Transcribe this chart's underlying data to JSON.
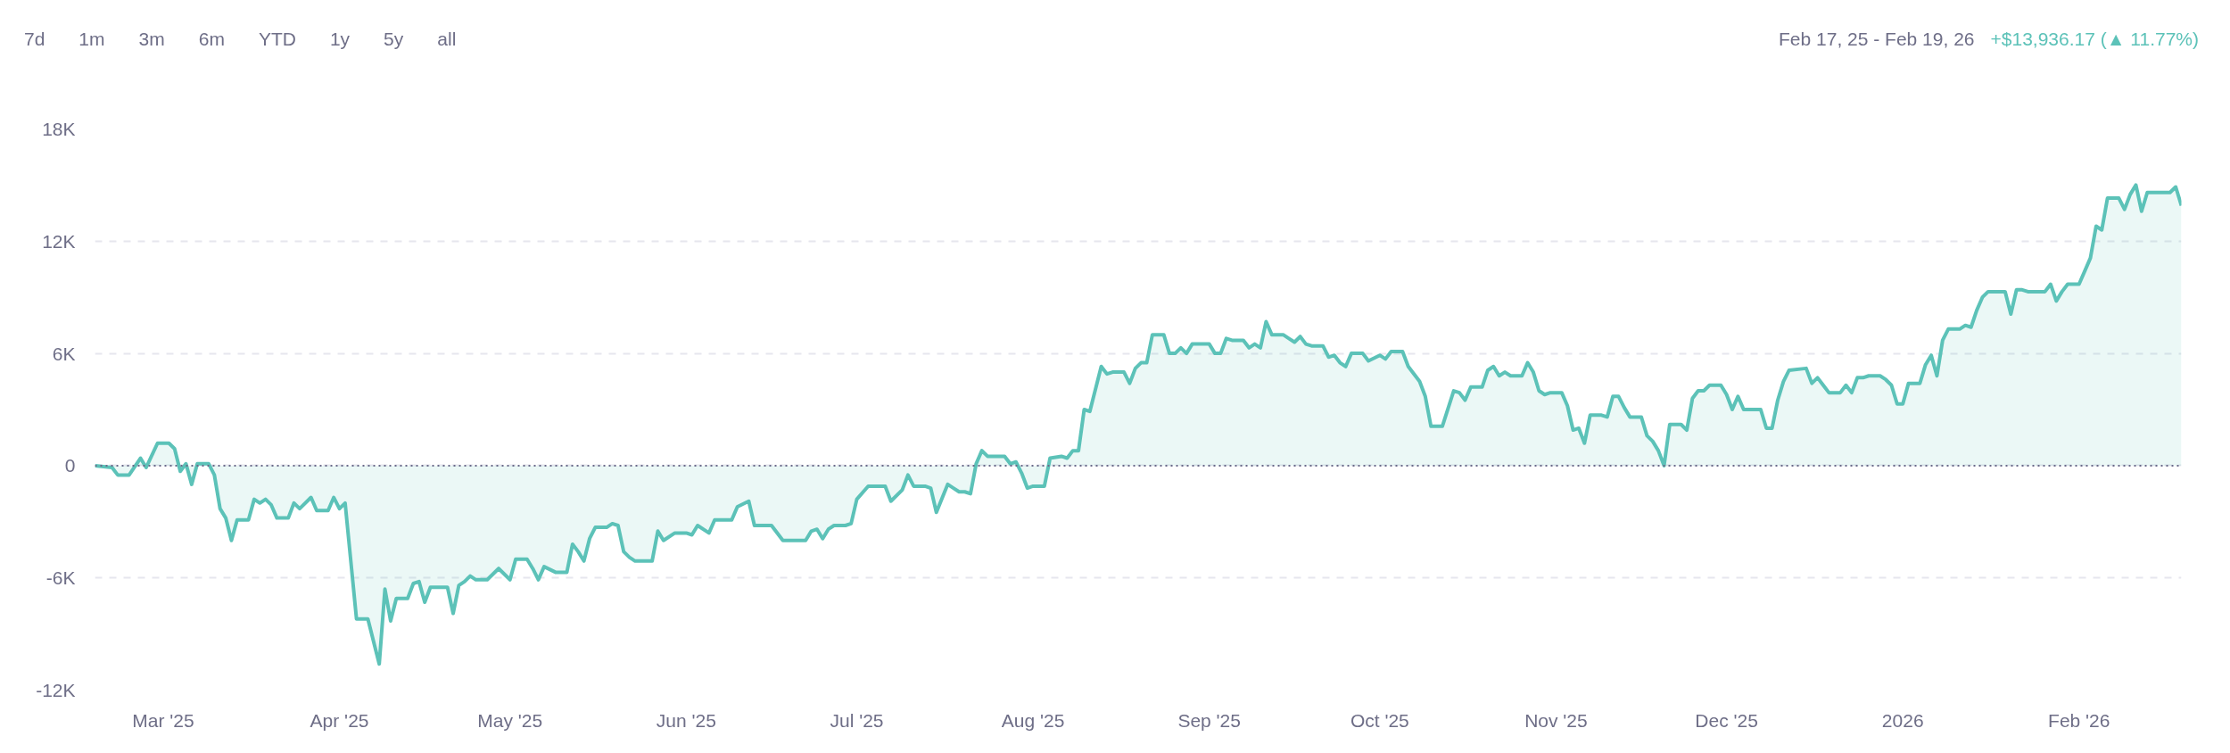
{
  "chart_data": {
    "type": "area",
    "annotations": [
      "7d",
      "1m",
      "3m",
      "6m",
      "YTD",
      "1y",
      "5y",
      "all",
      "Feb 17, 25 - Feb 19, 26",
      "+$13,936.17 (▲ 11.77%)"
    ],
    "x": [
      "2025-02-17",
      "2025-02-20",
      "2025-02-21",
      "2025-02-23",
      "2025-02-25",
      "2025-02-26",
      "2025-02-28",
      "2025-03-02",
      "2025-03-03",
      "2025-03-04",
      "2025-03-05",
      "2025-03-06",
      "2025-03-07",
      "2025-03-09",
      "2025-03-10",
      "2025-03-11",
      "2025-03-12",
      "2025-03-13",
      "2025-03-14",
      "2025-03-16",
      "2025-03-17",
      "2025-03-18",
      "2025-03-19",
      "2025-03-20",
      "2025-03-21",
      "2025-03-23",
      "2025-03-24",
      "2025-03-25",
      "2025-03-27",
      "2025-03-28",
      "2025-03-30",
      "2025-03-31",
      "2025-04-01",
      "2025-04-02",
      "2025-04-04",
      "2025-04-06",
      "2025-04-08",
      "2025-04-09",
      "2025-04-10",
      "2025-04-11",
      "2025-04-13",
      "2025-04-14",
      "2025-04-15",
      "2025-04-16",
      "2025-04-17",
      "2025-04-20",
      "2025-04-21",
      "2025-04-22",
      "2025-04-23",
      "2025-04-24",
      "2025-04-25",
      "2025-04-27",
      "2025-04-29",
      "2025-05-01",
      "2025-05-02",
      "2025-05-04",
      "2025-05-05",
      "2025-05-06",
      "2025-05-07",
      "2025-05-09",
      "2025-05-11",
      "2025-05-12",
      "2025-05-13",
      "2025-05-14",
      "2025-05-15",
      "2025-05-16",
      "2025-05-18",
      "2025-05-19",
      "2025-05-20",
      "2025-05-21",
      "2025-05-22",
      "2025-05-23",
      "2025-05-26",
      "2025-05-27",
      "2025-05-28",
      "2025-05-30",
      "2025-06-01",
      "2025-06-02",
      "2025-06-03",
      "2025-06-05",
      "2025-06-06",
      "2025-06-09",
      "2025-06-10",
      "2025-06-12",
      "2025-06-13",
      "2025-06-16",
      "2025-06-18",
      "2025-06-20",
      "2025-06-22",
      "2025-06-23",
      "2025-06-24",
      "2025-06-25",
      "2025-06-26",
      "2025-06-27",
      "2025-06-29",
      "2025-06-30",
      "2025-07-01",
      "2025-07-03",
      "2025-07-06",
      "2025-07-07",
      "2025-07-09",
      "2025-07-10",
      "2025-07-11",
      "2025-07-13",
      "2025-07-14",
      "2025-07-15",
      "2025-07-17",
      "2025-07-18",
      "2025-07-19",
      "2025-07-20",
      "2025-07-21",
      "2025-07-22",
      "2025-07-23",
      "2025-07-24",
      "2025-07-27",
      "2025-07-28",
      "2025-07-29",
      "2025-07-30",
      "2025-07-31",
      "2025-08-01",
      "2025-08-03",
      "2025-08-04",
      "2025-08-06",
      "2025-08-07",
      "2025-08-08",
      "2025-08-09",
      "2025-08-10",
      "2025-08-11",
      "2025-08-13",
      "2025-08-14",
      "2025-08-15",
      "2025-08-17",
      "2025-08-18",
      "2025-08-19",
      "2025-08-20",
      "2025-08-21",
      "2025-08-22",
      "2025-08-24",
      "2025-08-25",
      "2025-08-26",
      "2025-08-27",
      "2025-08-28",
      "2025-08-29",
      "2025-09-01",
      "2025-09-02",
      "2025-09-03",
      "2025-09-04",
      "2025-09-05",
      "2025-09-07",
      "2025-09-08",
      "2025-09-09",
      "2025-09-10",
      "2025-09-11",
      "2025-09-12",
      "2025-09-14",
      "2025-09-15",
      "2025-09-16",
      "2025-09-17",
      "2025-09-18",
      "2025-09-19",
      "2025-09-21",
      "2025-09-22",
      "2025-09-23",
      "2025-09-24",
      "2025-09-25",
      "2025-09-26",
      "2025-09-28",
      "2025-09-29",
      "2025-10-01",
      "2025-10-02",
      "2025-10-03",
      "2025-10-05",
      "2025-10-06",
      "2025-10-08",
      "2025-10-09",
      "2025-10-10",
      "2025-10-12",
      "2025-10-14",
      "2025-10-15",
      "2025-10-16",
      "2025-10-17",
      "2025-10-19",
      "2025-10-20",
      "2025-10-21",
      "2025-10-22",
      "2025-10-23",
      "2025-10-24",
      "2025-10-26",
      "2025-10-27",
      "2025-10-28",
      "2025-10-29",
      "2025-10-30",
      "2025-10-31",
      "2025-11-02",
      "2025-11-03",
      "2025-11-04",
      "2025-11-05",
      "2025-11-06",
      "2025-11-07",
      "2025-11-09",
      "2025-11-10",
      "2025-11-11",
      "2025-11-12",
      "2025-11-13",
      "2025-11-14",
      "2025-11-16",
      "2025-11-17",
      "2025-11-18",
      "2025-11-19",
      "2025-11-20",
      "2025-11-21",
      "2025-11-23",
      "2025-11-24",
      "2025-11-25",
      "2025-11-26",
      "2025-11-27",
      "2025-11-28",
      "2025-11-30",
      "2025-12-01",
      "2025-12-02",
      "2025-12-03",
      "2025-12-04",
      "2025-12-07",
      "2025-12-08",
      "2025-12-09",
      "2025-12-10",
      "2025-12-11",
      "2025-12-12",
      "2025-12-15",
      "2025-12-16",
      "2025-12-17",
      "2025-12-18",
      "2025-12-19",
      "2025-12-21",
      "2025-12-22",
      "2025-12-23",
      "2025-12-24",
      "2025-12-25",
      "2025-12-26",
      "2025-12-28",
      "2025-12-29",
      "2025-12-30",
      "2025-12-31",
      "2026-01-01",
      "2026-01-02",
      "2026-01-04",
      "2026-01-05",
      "2026-01-06",
      "2026-01-07",
      "2026-01-08",
      "2026-01-09",
      "2026-01-11",
      "2026-01-12",
      "2026-01-13",
      "2026-01-14",
      "2026-01-15",
      "2026-01-16",
      "2026-01-19",
      "2026-01-20",
      "2026-01-21",
      "2026-01-22",
      "2026-01-23",
      "2026-01-26",
      "2026-01-27",
      "2026-01-28",
      "2026-01-29",
      "2026-01-30",
      "2026-02-01",
      "2026-02-02",
      "2026-02-03",
      "2026-02-04",
      "2026-02-05",
      "2026-02-06",
      "2026-02-08",
      "2026-02-09",
      "2026-02-10",
      "2026-02-11",
      "2026-02-12",
      "2026-02-13",
      "2026-02-16",
      "2026-02-17",
      "2026-02-18",
      "2026-02-19"
    ],
    "series": [
      {
        "color": "#5cc2b8",
        "values": [
          0,
          -100,
          -500,
          -500,
          400,
          -100,
          1200,
          1200,
          900,
          -300,
          100,
          -1000,
          100,
          100,
          -500,
          -2300,
          -2800,
          -4000,
          -2900,
          -2900,
          -1800,
          -2000,
          -1800,
          -2100,
          -2800,
          -2800,
          -2000,
          -2300,
          -1700,
          -2400,
          -2400,
          -1700,
          -2300,
          -2000,
          -8200,
          -8200,
          -10600,
          -6600,
          -8300,
          -7100,
          -7100,
          -6300,
          -6200,
          -7300,
          -6500,
          -6500,
          -7900,
          -6400,
          -6200,
          -5900,
          -6100,
          -6100,
          -5500,
          -6100,
          -5000,
          -5000,
          -5500,
          -6100,
          -5400,
          -5700,
          -5700,
          -4200,
          -4600,
          -5100,
          -3900,
          -3300,
          -3300,
          -3100,
          -3200,
          -4600,
          -4900,
          -5100,
          -5100,
          -3500,
          -4000,
          -3600,
          -3600,
          -3700,
          -3200,
          -3600,
          -2900,
          -2900,
          -2200,
          -1900,
          -3200,
          -3200,
          -4000,
          -4000,
          -4000,
          -3500,
          -3400,
          -3900,
          -3400,
          -3200,
          -3200,
          -3100,
          -1800,
          -1100,
          -1100,
          -1900,
          -1300,
          -500,
          -1100,
          -1100,
          -1200,
          -2500,
          -1000,
          -1200,
          -1400,
          -1400,
          -1500,
          100,
          800,
          500,
          500,
          100,
          200,
          -400,
          -1200,
          -1100,
          -1100,
          400,
          500,
          400,
          800,
          800,
          3000,
          2900,
          5300,
          4900,
          5000,
          5000,
          4400,
          5200,
          5500,
          5500,
          7000,
          7000,
          6000,
          6000,
          6300,
          6000,
          6500,
          6500,
          6000,
          6000,
          6800,
          6700,
          6700,
          6300,
          6500,
          6300,
          7700,
          7000,
          7000,
          6800,
          6600,
          6900,
          6500,
          6400,
          6400,
          5800,
          5900,
          5500,
          5300,
          6000,
          6000,
          5600,
          5900,
          5700,
          6100,
          6100,
          5300,
          4500,
          3700,
          2100,
          2100,
          4000,
          3900,
          3500,
          4200,
          4200,
          5100,
          5300,
          4800,
          5000,
          4800,
          4800,
          5500,
          5000,
          4000,
          3800,
          3900,
          3900,
          3200,
          1900,
          2000,
          1200,
          2700,
          2700,
          2600,
          3700,
          3700,
          3100,
          2600,
          2600,
          1600,
          1300,
          800,
          0,
          2200,
          2200,
          1900,
          3600,
          4000,
          4000,
          4300,
          4300,
          3800,
          3000,
          3700,
          3000,
          3000,
          2000,
          2000,
          3500,
          4500,
          5100,
          5200,
          4400,
          4700,
          4300,
          3900,
          3900,
          4300,
          3900,
          4700,
          4700,
          4800,
          4800,
          4600,
          4300,
          3300,
          3300,
          4400,
          4400,
          5400,
          5900,
          4800,
          6700,
          7300,
          7300,
          7500,
          7400,
          8300,
          9000,
          9300,
          9300,
          8100,
          9400,
          9400,
          9300,
          9300,
          9700,
          8800,
          9300,
          9700,
          9700,
          10400,
          11100,
          12800,
          12600,
          14300,
          14300,
          13700,
          14500,
          15000,
          13600,
          14600,
          14600,
          14600,
          14900,
          13900
        ]
      }
    ],
    "xlim": [
      "2025-02-17",
      "2026-02-19"
    ],
    "xticks": [
      {
        "value": "2025-03-01",
        "label": "Mar '25"
      },
      {
        "value": "2025-04-01",
        "label": "Apr '25"
      },
      {
        "value": "2025-05-01",
        "label": "May '25"
      },
      {
        "value": "2025-06-01",
        "label": "Jun '25"
      },
      {
        "value": "2025-07-01",
        "label": "Jul '25"
      },
      {
        "value": "2025-08-01",
        "label": "Aug '25"
      },
      {
        "value": "2025-09-01",
        "label": "Sep '25"
      },
      {
        "value": "2025-10-01",
        "label": "Oct '25"
      },
      {
        "value": "2025-11-01",
        "label": "Nov '25"
      },
      {
        "value": "2025-12-01",
        "label": "Dec '25"
      },
      {
        "value": "2026-01-01",
        "label": "2026"
      },
      {
        "value": "2026-02-01",
        "label": "Feb '26"
      }
    ],
    "ylim": [
      -12000,
      18000
    ],
    "yticks": [
      {
        "value": -12000,
        "label": "-12K"
      },
      {
        "value": -6000,
        "label": "-6K"
      },
      0,
      {
        "value": 6000,
        "label": "6K"
      },
      {
        "value": 12000,
        "label": "12K"
      },
      {
        "value": 18000,
        "label": "18K"
      }
    ],
    "ref_lines": [
      {
        "axis": "y",
        "value": 0,
        "color": "#6b6b8a",
        "line_style": "dotted"
      }
    ],
    "grid": "y"
  }
}
